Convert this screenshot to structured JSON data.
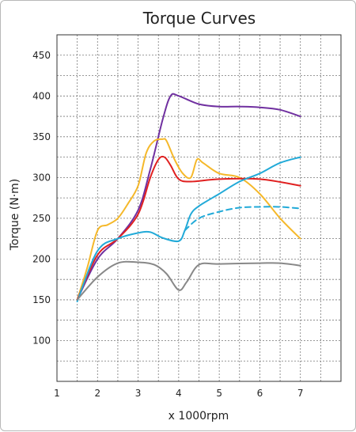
{
  "chart_data": {
    "type": "line",
    "title": "Torque Curves",
    "xlabel": "x 1000rpm",
    "ylabel": "Torque (N·m)",
    "xlim": [
      1,
      8
    ],
    "ylim": [
      50,
      475
    ],
    "x_ticks": [
      1,
      2,
      3,
      4,
      5,
      6,
      7
    ],
    "y_ticks": [
      100,
      150,
      200,
      250,
      300,
      350,
      400,
      450
    ],
    "grid": true,
    "legend": "none",
    "series": [
      {
        "color": "#7030a0",
        "dash": false,
        "x": [
          1.5,
          2.0,
          2.5,
          3.0,
          3.3,
          3.6,
          3.8,
          4.0,
          4.5,
          5.0,
          5.5,
          6.0,
          6.5,
          7.0
        ],
        "y": [
          150,
          200,
          225,
          260,
          310,
          370,
          400,
          400,
          390,
          387,
          387,
          386,
          383,
          375
        ]
      },
      {
        "color": "#f5b82a",
        "dash": false,
        "x": [
          1.5,
          1.75,
          2.0,
          2.25,
          2.5,
          2.75,
          3.0,
          3.2,
          3.4,
          3.6,
          3.7,
          3.9,
          4.1,
          4.3,
          4.45,
          4.6,
          5.0,
          5.5,
          6.0,
          6.5,
          7.0
        ],
        "y": [
          150,
          190,
          235,
          242,
          250,
          268,
          290,
          330,
          345,
          347,
          345,
          322,
          305,
          300,
          322,
          318,
          305,
          300,
          280,
          250,
          225
        ]
      },
      {
        "color": "#e02020",
        "dash": false,
        "x": [
          1.5,
          2.0,
          2.5,
          3.0,
          3.3,
          3.5,
          3.65,
          3.8,
          4.0,
          4.3,
          5.0,
          6.0,
          7.0
        ],
        "y": [
          150,
          205,
          225,
          255,
          300,
          322,
          325,
          315,
          298,
          295,
          298,
          298,
          290
        ]
      },
      {
        "color": "#22aad8",
        "dash": false,
        "x": [
          1.5,
          2.0,
          2.5,
          3.0,
          3.3,
          3.6,
          4.0,
          4.15,
          4.3,
          4.5,
          5.0,
          5.5,
          6.0,
          6.5,
          7.0
        ],
        "y": [
          148,
          210,
          225,
          232,
          233,
          226,
          222,
          235,
          255,
          265,
          280,
          295,
          305,
          318,
          325
        ]
      },
      {
        "color": "#22aad8",
        "dash": true,
        "x": [
          4.15,
          4.5,
          5.0,
          5.5,
          6.0,
          6.5,
          7.0
        ],
        "y": [
          235,
          250,
          258,
          263,
          264,
          264,
          262
        ]
      },
      {
        "color": "#888888",
        "dash": false,
        "x": [
          1.5,
          2.0,
          2.5,
          3.0,
          3.4,
          3.7,
          4.0,
          4.2,
          4.5,
          5.0,
          6.0,
          6.5,
          7.0
        ],
        "y": [
          150,
          178,
          195,
          196,
          193,
          182,
          162,
          172,
          193,
          194,
          195,
          195,
          192
        ]
      }
    ]
  }
}
